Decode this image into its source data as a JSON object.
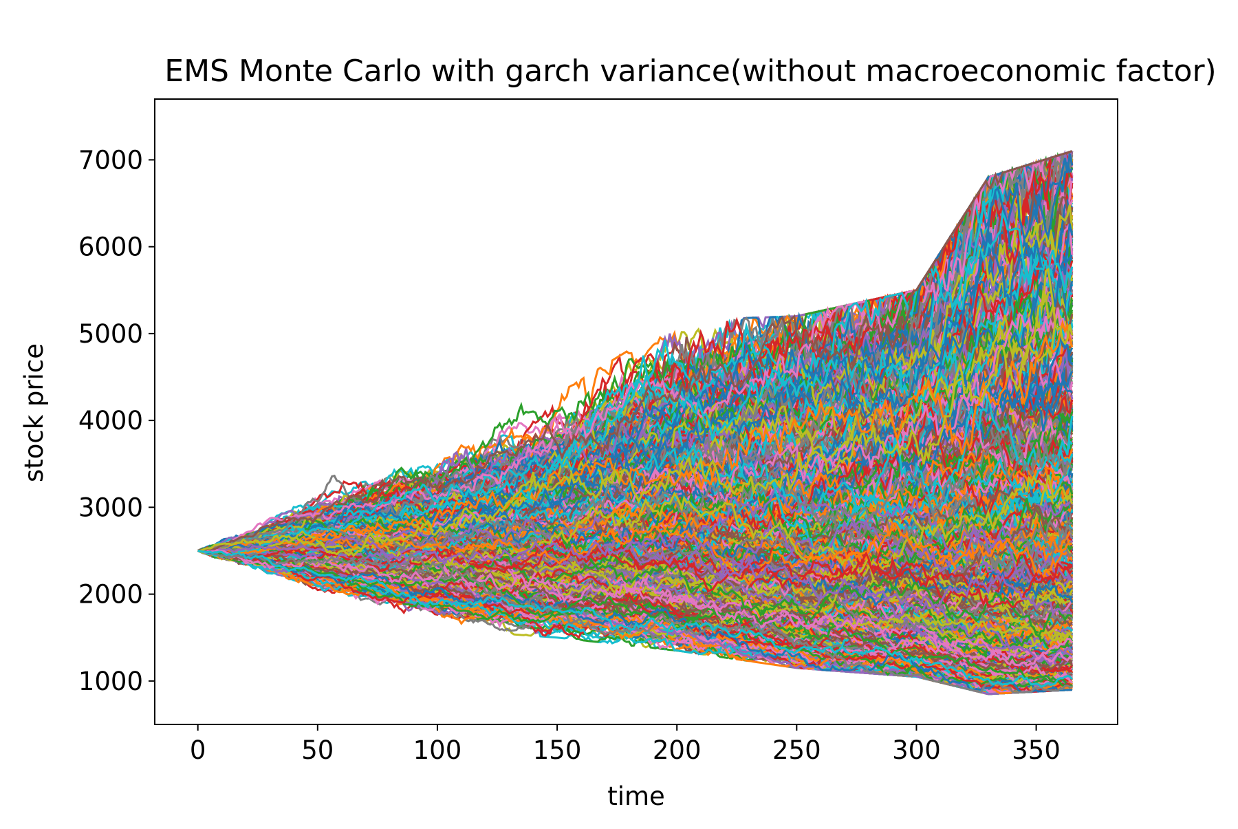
{
  "chart_data": {
    "type": "line",
    "title": "EMS Monte Carlo with garch variance(without macroeconomic factor)",
    "xlabel": "time",
    "ylabel": "stock price",
    "xlim": [
      -18,
      384
    ],
    "ylim": [
      500,
      7700
    ],
    "x_ticks": [
      0,
      50,
      100,
      150,
      200,
      250,
      300,
      350
    ],
    "y_ticks": [
      1000,
      2000,
      3000,
      4000,
      5000,
      6000,
      7000
    ],
    "x_range": [
      0,
      365
    ],
    "start_value": 2500,
    "num_series_approx": 1000,
    "grid": false,
    "legend": false,
    "palette": [
      "#1f77b4",
      "#ff7f0e",
      "#2ca02c",
      "#d62728",
      "#9467bd",
      "#8c564b",
      "#e377c2",
      "#7f7f7f",
      "#bcbd22",
      "#17becf"
    ],
    "envelope": {
      "x": [
        0,
        50,
        100,
        150,
        200,
        250,
        300,
        330,
        365
      ],
      "upper": [
        2500,
        3550,
        3900,
        4300,
        5150,
        5200,
        5500,
        6800,
        7100
      ],
      "lower": [
        2500,
        1850,
        1600,
        1500,
        1350,
        1150,
        1050,
        850,
        900
      ]
    },
    "final_values_approx": {
      "max": 7100,
      "p99": 6600,
      "p95": 5000,
      "median": 2500,
      "p5": 1200,
      "min": 900
    }
  }
}
